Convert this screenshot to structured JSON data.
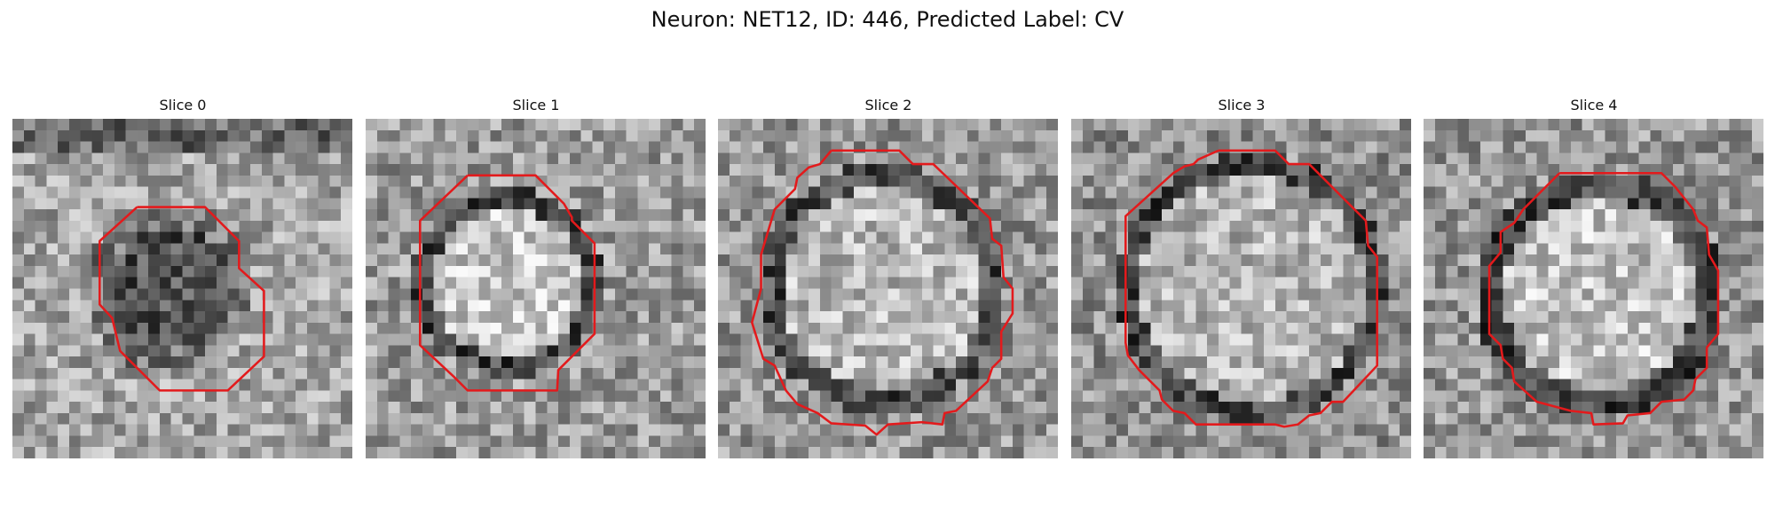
{
  "figure": {
    "title": "Neuron: NET12, ID: 446, Predicted Label: CV"
  },
  "panels": [
    {
      "title": "Slice 0",
      "contour_color": "#e31a1c"
    },
    {
      "title": "Slice 1",
      "contour_color": "#e31a1c"
    },
    {
      "title": "Slice 2",
      "contour_color": "#e31a1c"
    },
    {
      "title": "Slice 3",
      "contour_color": "#e31a1c"
    },
    {
      "title": "Slice 4",
      "contour_color": "#e31a1c"
    }
  ],
  "colormap": "gray"
}
